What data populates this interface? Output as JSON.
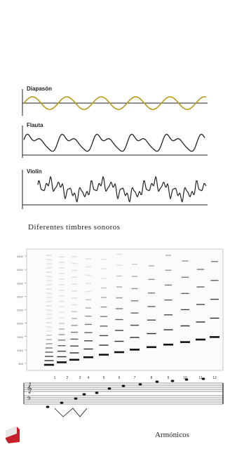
{
  "timbres": {
    "panels": [
      {
        "label": "Diapasón",
        "wave": "sine",
        "color": "#b89b1a"
      },
      {
        "label": "Flauta",
        "wave": "flute",
        "color": "#222222"
      },
      {
        "label": "Violín",
        "wave": "violin",
        "color": "#222222"
      }
    ],
    "caption": "Diferentes timbres sonoros"
  },
  "spectrogram": {
    "harmonic_numbers": [
      "1",
      "2",
      "3",
      "4",
      "5",
      "6",
      "7",
      "8",
      "9",
      "10",
      "11",
      "12"
    ],
    "y_ticks": [
      "4500",
      "4000",
      "3500",
      "3000",
      "2500",
      "2000",
      "1500",
      "1000",
      "500"
    ],
    "caption": "Armónicos"
  },
  "colors": {
    "accent": "#c8202a",
    "staff": "#333333"
  }
}
